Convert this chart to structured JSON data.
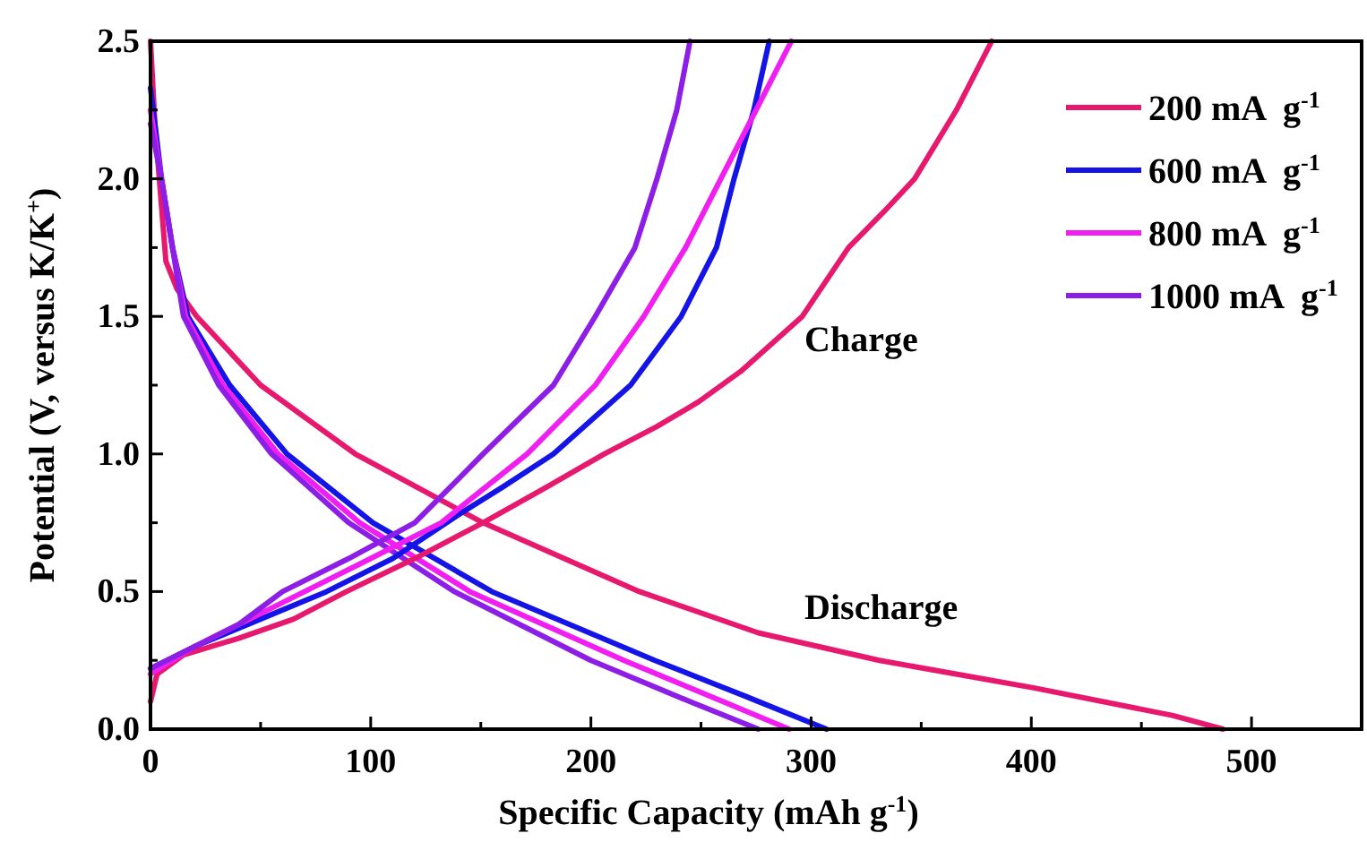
{
  "chart_data": {
    "type": "line",
    "xlabel": "Specific Capacity (mAh g$^{-1}$)",
    "ylabel": "Potential (V, versus K/K$^{+}$)",
    "xlim": [
      0,
      550
    ],
    "xticks": [
      0,
      {
        "value": 50,
        "label": null
      },
      100,
      {
        "value": 150,
        "label": null
      },
      200,
      {
        "value": 250,
        "label": null
      },
      300,
      {
        "value": 350,
        "label": null
      },
      400,
      {
        "value": 450,
        "label": null
      },
      500
    ],
    "ylim": [
      0,
      2.5
    ],
    "yticks": [
      "0.0",
      {
        "value": 0.25,
        "label": null
      },
      {
        "value": 0.5,
        "label": "0.5"
      },
      {
        "value": 0.75,
        "label": null
      },
      {
        "value": 1,
        "label": "1.0"
      },
      {
        "value": 1.25,
        "label": null
      },
      {
        "value": 1.5,
        "label": "1.5"
      },
      {
        "value": 1.75,
        "label": null
      },
      {
        "value": 2,
        "label": "2.0"
      },
      {
        "value": 2.25,
        "label": null
      },
      {
        "value": 2.5,
        "label": "2.5"
      }
    ],
    "grid": false,
    "legend": "top right",
    "marker": "none",
    "line_style": "solid",
    "annotations": [
      "Charge",
      "Discharge"
    ],
    "series": [
      {
        "name": "200 mA  g$^{-1}$",
        "color": "#e6196e",
        "x": [
          0,
          2,
          4,
          7,
          12,
          21,
          50,
          93,
          151,
          222,
          276,
          331,
          401,
          464,
          487
        ],
        "values": [
          2.5,
          2.2,
          2.0,
          1.7,
          1.6,
          1.5,
          1.25,
          1.0,
          0.75,
          0.5,
          0.35,
          0.25,
          0.15,
          0.05,
          0
        ]
      },
      {
        "name": "600 mA  g$^{-1}$",
        "color": "#1414e6",
        "x": [
          0,
          2,
          5,
          10,
          17,
          36,
          62,
          101,
          155,
          229,
          270,
          307
        ],
        "values": [
          2.33,
          2.2,
          2.0,
          1.75,
          1.5,
          1.25,
          1.0,
          0.75,
          0.5,
          0.25,
          0.12,
          0
        ]
      },
      {
        "name": "800 mA  g$^{-1}$",
        "color": "#f01ef0",
        "x": [
          0,
          5,
          10,
          16,
          33,
          58,
          95,
          145,
          215,
          260,
          290
        ],
        "values": [
          2.25,
          2.0,
          1.75,
          1.5,
          1.25,
          1.0,
          0.75,
          0.5,
          0.25,
          0.1,
          0
        ]
      },
      {
        "name": "1000 mA  g$^{-1}$",
        "color": "#8c1ee6",
        "x": [
          0,
          5,
          10,
          15,
          31,
          55,
          90,
          138,
          200,
          245,
          276
        ],
        "values": [
          2.2,
          2.0,
          1.75,
          1.5,
          1.25,
          1.0,
          0.75,
          0.5,
          0.25,
          0.1,
          0
        ]
      },
      {
        "color": "#e6196e",
        "x": [
          0,
          3,
          15,
          40,
          65,
          89,
          120,
          151,
          180,
          206,
          230,
          249,
          268,
          282,
          296,
          317,
          333,
          347,
          366,
          382
        ],
        "values": [
          0.1,
          0.2,
          0.27,
          0.33,
          0.4,
          0.5,
          0.62,
          0.75,
          0.88,
          1.0,
          1.1,
          1.19,
          1.3,
          1.4,
          1.5,
          1.75,
          1.88,
          2.0,
          2.25,
          2.5
        ]
      },
      {
        "color": "#1414e6",
        "x": [
          0,
          20,
          50,
          80,
          110,
          140,
          160,
          183,
          218,
          241,
          257,
          265,
          274,
          281
        ],
        "values": [
          0.22,
          0.3,
          0.4,
          0.5,
          0.62,
          0.78,
          0.88,
          1.0,
          1.25,
          1.5,
          1.75,
          2.0,
          2.25,
          2.5
        ]
      },
      {
        "color": "#f01ef0",
        "x": [
          0,
          20,
          45,
          70,
          100,
          132,
          171,
          202,
          224,
          243,
          259,
          275,
          291
        ],
        "values": [
          0.2,
          0.3,
          0.4,
          0.5,
          0.62,
          0.75,
          1.0,
          1.25,
          1.5,
          1.75,
          2.0,
          2.25,
          2.5
        ]
      },
      {
        "color": "#8c1ee6",
        "x": [
          0,
          20,
          40,
          60,
          90,
          120,
          135,
          151,
          183,
          202,
          220,
          230,
          239,
          245
        ],
        "values": [
          0.22,
          0.3,
          0.38,
          0.5,
          0.62,
          0.75,
          0.87,
          1.0,
          1.25,
          1.5,
          1.75,
          2.0,
          2.25,
          2.5
        ]
      }
    ]
  }
}
